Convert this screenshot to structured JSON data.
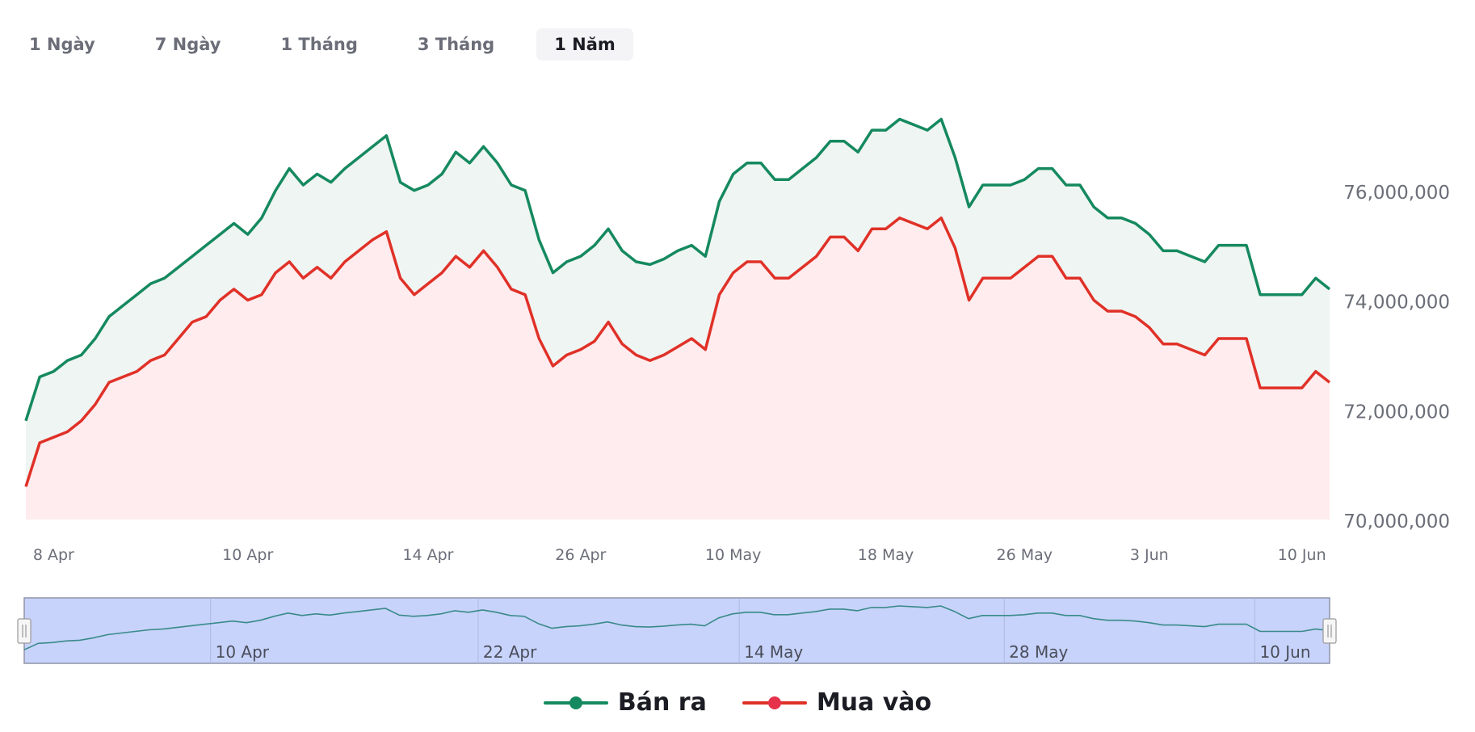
{
  "tabs": [
    {
      "label": "1 Ngày",
      "active": false
    },
    {
      "label": "7 Ngày",
      "active": false
    },
    {
      "label": "1 Tháng",
      "active": false
    },
    {
      "label": "3 Tháng",
      "active": false
    },
    {
      "label": "1 Năm",
      "active": true
    }
  ],
  "colors": {
    "sell_line": "#15895f",
    "sell_fill": "#eff5f2",
    "buy_line": "#e03128",
    "buy_fill": "#ffecee",
    "axis_text": "#6b6e78",
    "navigator_fill": "#c7d3fa",
    "navigator_line": "#3a8a8a",
    "navigator_border": "#8f94a8"
  },
  "chart_data": {
    "type": "area",
    "y_axis_position": "right",
    "ylim": [
      70000000,
      78000000
    ],
    "ytick_labels": [
      {
        "value": 70000000,
        "label": "70,000,000"
      },
      {
        "value": 72000000,
        "label": "72,000,000"
      },
      {
        "value": 74000000,
        "label": "74,000,000"
      },
      {
        "value": 76000000,
        "label": "76,000,000"
      }
    ],
    "xtick_labels": [
      {
        "index": 2,
        "label": "8 Apr"
      },
      {
        "index": 16,
        "label": "10 Apr"
      },
      {
        "index": 29,
        "label": "14 Apr"
      },
      {
        "index": 40,
        "label": "26 Apr"
      },
      {
        "index": 51,
        "label": "10 May"
      },
      {
        "index": 62,
        "label": "18 May"
      },
      {
        "index": 72,
        "label": "26 May"
      },
      {
        "index": 81,
        "label": "3 Jun"
      },
      {
        "index": 92,
        "label": "10 Jun"
      }
    ],
    "grid": false,
    "legend_position": "bottom-center",
    "series": [
      {
        "name": "Bán ra",
        "values": [
          71800000,
          72600000,
          72700000,
          72900000,
          73000000,
          73300000,
          73700000,
          73900000,
          74100000,
          74300000,
          74400000,
          74600000,
          74800000,
          75000000,
          75200000,
          75400000,
          75200000,
          75500000,
          76000000,
          76400000,
          76100000,
          76300000,
          76150000,
          76400000,
          76600000,
          76800000,
          77000000,
          76150000,
          76000000,
          76100000,
          76300000,
          76700000,
          76500000,
          76800000,
          76500000,
          76100000,
          76000000,
          75100000,
          74500000,
          74700000,
          74800000,
          75000000,
          75300000,
          74900000,
          74700000,
          74650000,
          74750000,
          74900000,
          75000000,
          74800000,
          75800000,
          76300000,
          76500000,
          76500000,
          76200000,
          76200000,
          76400000,
          76600000,
          76900000,
          76900000,
          76700000,
          77100000,
          77100000,
          77300000,
          77200000,
          77100000,
          77300000,
          76600000,
          75700000,
          76100000,
          76100000,
          76100000,
          76200000,
          76400000,
          76400000,
          76100000,
          76100000,
          75700000,
          75500000,
          75500000,
          75400000,
          75200000,
          74900000,
          74900000,
          74800000,
          74700000,
          75000000,
          75000000,
          75000000,
          74100000,
          74100000,
          74100000,
          74100000,
          74400000,
          74200000
        ]
      },
      {
        "name": "Mua vào",
        "values": [
          70600000,
          71400000,
          71500000,
          71600000,
          71800000,
          72100000,
          72500000,
          72600000,
          72700000,
          72900000,
          73000000,
          73300000,
          73600000,
          73700000,
          74000000,
          74200000,
          74000000,
          74100000,
          74500000,
          74700000,
          74400000,
          74600000,
          74400000,
          74700000,
          74900000,
          75100000,
          75250000,
          74400000,
          74100000,
          74300000,
          74500000,
          74800000,
          74600000,
          74900000,
          74600000,
          74200000,
          74100000,
          73300000,
          72800000,
          73000000,
          73100000,
          73250000,
          73600000,
          73200000,
          73000000,
          72900000,
          73000000,
          73150000,
          73300000,
          73100000,
          74100000,
          74500000,
          74700000,
          74700000,
          74400000,
          74400000,
          74600000,
          74800000,
          75150000,
          75150000,
          74900000,
          75300000,
          75300000,
          75500000,
          75400000,
          75300000,
          75500000,
          74950000,
          74000000,
          74400000,
          74400000,
          74400000,
          74600000,
          74800000,
          74800000,
          74400000,
          74400000,
          74000000,
          73800000,
          73800000,
          73700000,
          73500000,
          73200000,
          73200000,
          73100000,
          73000000,
          73300000,
          73300000,
          73300000,
          72400000,
          72400000,
          72400000,
          72400000,
          72700000,
          72500000
        ]
      }
    ]
  },
  "navigator": {
    "tick_labels": [
      {
        "position": 0.165,
        "label": "10 Apr"
      },
      {
        "position": 0.37,
        "label": "22 Apr"
      },
      {
        "position": 0.57,
        "label": "14 May"
      },
      {
        "position": 0.773,
        "label": "28 May"
      },
      {
        "position": 0.965,
        "label": "10 Jun"
      }
    ],
    "selected_range": [
      0,
      1
    ]
  }
}
